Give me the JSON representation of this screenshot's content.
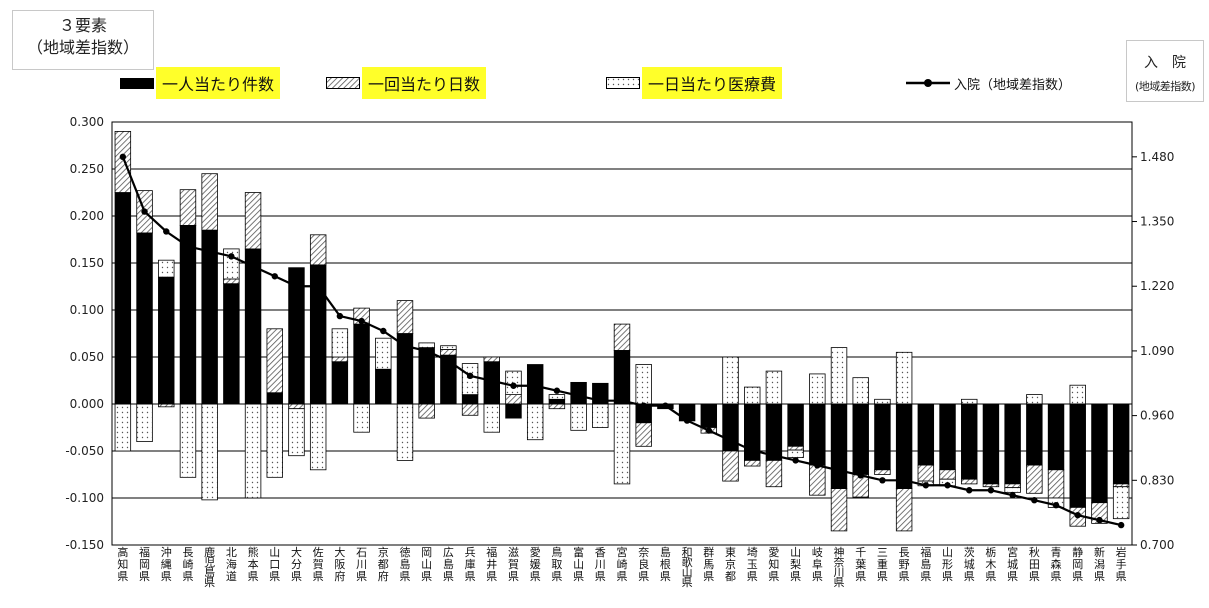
{
  "titles": {
    "left_line1": "３要素",
    "left_line2": "（地域差指数）",
    "right_line1": "入　院",
    "right_line2": "(地域差指数)"
  },
  "legend": {
    "series1": "一人当たり件数",
    "series2": "一回当たり日数",
    "series3": "一日当たり医療費",
    "line": "入院（地域差指数）"
  },
  "colors": {
    "series1": "#000000",
    "series2_hatch": "#555555",
    "series3_dots": "#555555",
    "line": "#000000",
    "highlight": "#ffff2a",
    "grid": "#000000"
  },
  "chart_data": {
    "type": "bar",
    "stacked": true,
    "categories": [
      "高知県",
      "福岡県",
      "沖縄県",
      "長崎県",
      "鹿児島県",
      "北海道",
      "熊本県",
      "山口県",
      "大分県",
      "佐賀県",
      "大阪府",
      "石川県",
      "京都府",
      "徳島県",
      "岡山県",
      "広島県",
      "兵庫県",
      "福井県",
      "滋賀県",
      "愛媛県",
      "鳥取県",
      "富山県",
      "香川県",
      "宮崎県",
      "奈良県",
      "島根県",
      "和歌山県",
      "群馬県",
      "東京都",
      "埼玉県",
      "愛知県",
      "山梨県",
      "岐阜県",
      "神奈川県",
      "千葉県",
      "三重県",
      "長野県",
      "福島県",
      "山形県",
      "茨城県",
      "栃木県",
      "宮城県",
      "秋田県",
      "青森県",
      "静岡県",
      "新潟県",
      "岩手県"
    ],
    "left_axis": {
      "ylim": [
        -0.15,
        0.3
      ],
      "ticks": [
        "0.300",
        "0.250",
        "0.200",
        "0.150",
        "0.100",
        "0.050",
        "0.000",
        "-0.050",
        "-0.100",
        "-0.150"
      ]
    },
    "right_axis": {
      "ylim": [
        0.7,
        1.55
      ],
      "ticks": [
        "1.480",
        "1.350",
        "1.220",
        "1.090",
        "0.960",
        "0.830",
        "0.700"
      ]
    },
    "grid": true,
    "legend_position": "top",
    "series": [
      {
        "name": "一人当たり件数",
        "values": [
          0.225,
          0.182,
          0.135,
          0.19,
          0.185,
          0.128,
          0.165,
          0.012,
          0.145,
          0.148,
          0.045,
          0.085,
          0.037,
          0.075,
          0.06,
          0.052,
          0.01,
          0.045,
          -0.015,
          0.042,
          0.005,
          0.023,
          0.022,
          0.057,
          -0.02,
          -0.005,
          -0.018,
          -0.025,
          -0.05,
          -0.06,
          -0.06,
          -0.045,
          -0.065,
          -0.09,
          -0.075,
          -0.07,
          -0.09,
          -0.065,
          -0.07,
          -0.08,
          -0.085,
          -0.085,
          -0.065,
          -0.07,
          -0.11,
          -0.105,
          -0.085
        ]
      },
      {
        "name": "一回当たり日数",
        "values": [
          0.065,
          0.045,
          -0.003,
          0.038,
          0.06,
          0.005,
          0.06,
          0.068,
          -0.005,
          0.032,
          0.005,
          0.017,
          0.0,
          0.035,
          -0.015,
          0.006,
          -0.012,
          0.005,
          0.01,
          0.0,
          -0.005,
          0.0,
          0.0,
          0.028,
          -0.025,
          0.0,
          0.0,
          -0.006,
          -0.032,
          -0.006,
          -0.028,
          -0.004,
          -0.032,
          -0.045,
          -0.024,
          -0.005,
          -0.045,
          -0.017,
          -0.01,
          -0.005,
          -0.003,
          -0.004,
          -0.03,
          -0.03,
          -0.02,
          -0.022,
          -0.003
        ]
      },
      {
        "name": "一日当たり医療費",
        "values": [
          -0.05,
          -0.04,
          0.018,
          -0.078,
          -0.102,
          0.032,
          -0.1,
          -0.078,
          -0.05,
          -0.07,
          0.03,
          -0.03,
          0.033,
          -0.06,
          0.005,
          0.004,
          0.033,
          -0.03,
          0.025,
          -0.038,
          0.005,
          -0.028,
          -0.025,
          -0.085,
          0.042,
          0.0,
          0.0,
          0.0,
          0.05,
          0.018,
          0.035,
          -0.008,
          0.032,
          0.06,
          0.028,
          0.005,
          0.055,
          -0.005,
          -0.007,
          0.005,
          0.0,
          -0.005,
          0.01,
          -0.01,
          0.02,
          0.0,
          -0.034
        ]
      },
      {
        "name": "入院（地域差指数）",
        "type": "line",
        "axis": "right",
        "values": [
          1.48,
          1.37,
          1.33,
          1.3,
          1.29,
          1.28,
          1.26,
          1.24,
          1.22,
          1.22,
          1.16,
          1.15,
          1.13,
          1.1,
          1.09,
          1.07,
          1.04,
          1.03,
          1.02,
          1.02,
          1.01,
          1.0,
          0.99,
          0.99,
          0.98,
          0.98,
          0.95,
          0.93,
          0.91,
          0.89,
          0.88,
          0.87,
          0.86,
          0.85,
          0.84,
          0.83,
          0.83,
          0.82,
          0.82,
          0.81,
          0.81,
          0.8,
          0.79,
          0.78,
          0.76,
          0.75,
          0.74
        ]
      }
    ]
  }
}
